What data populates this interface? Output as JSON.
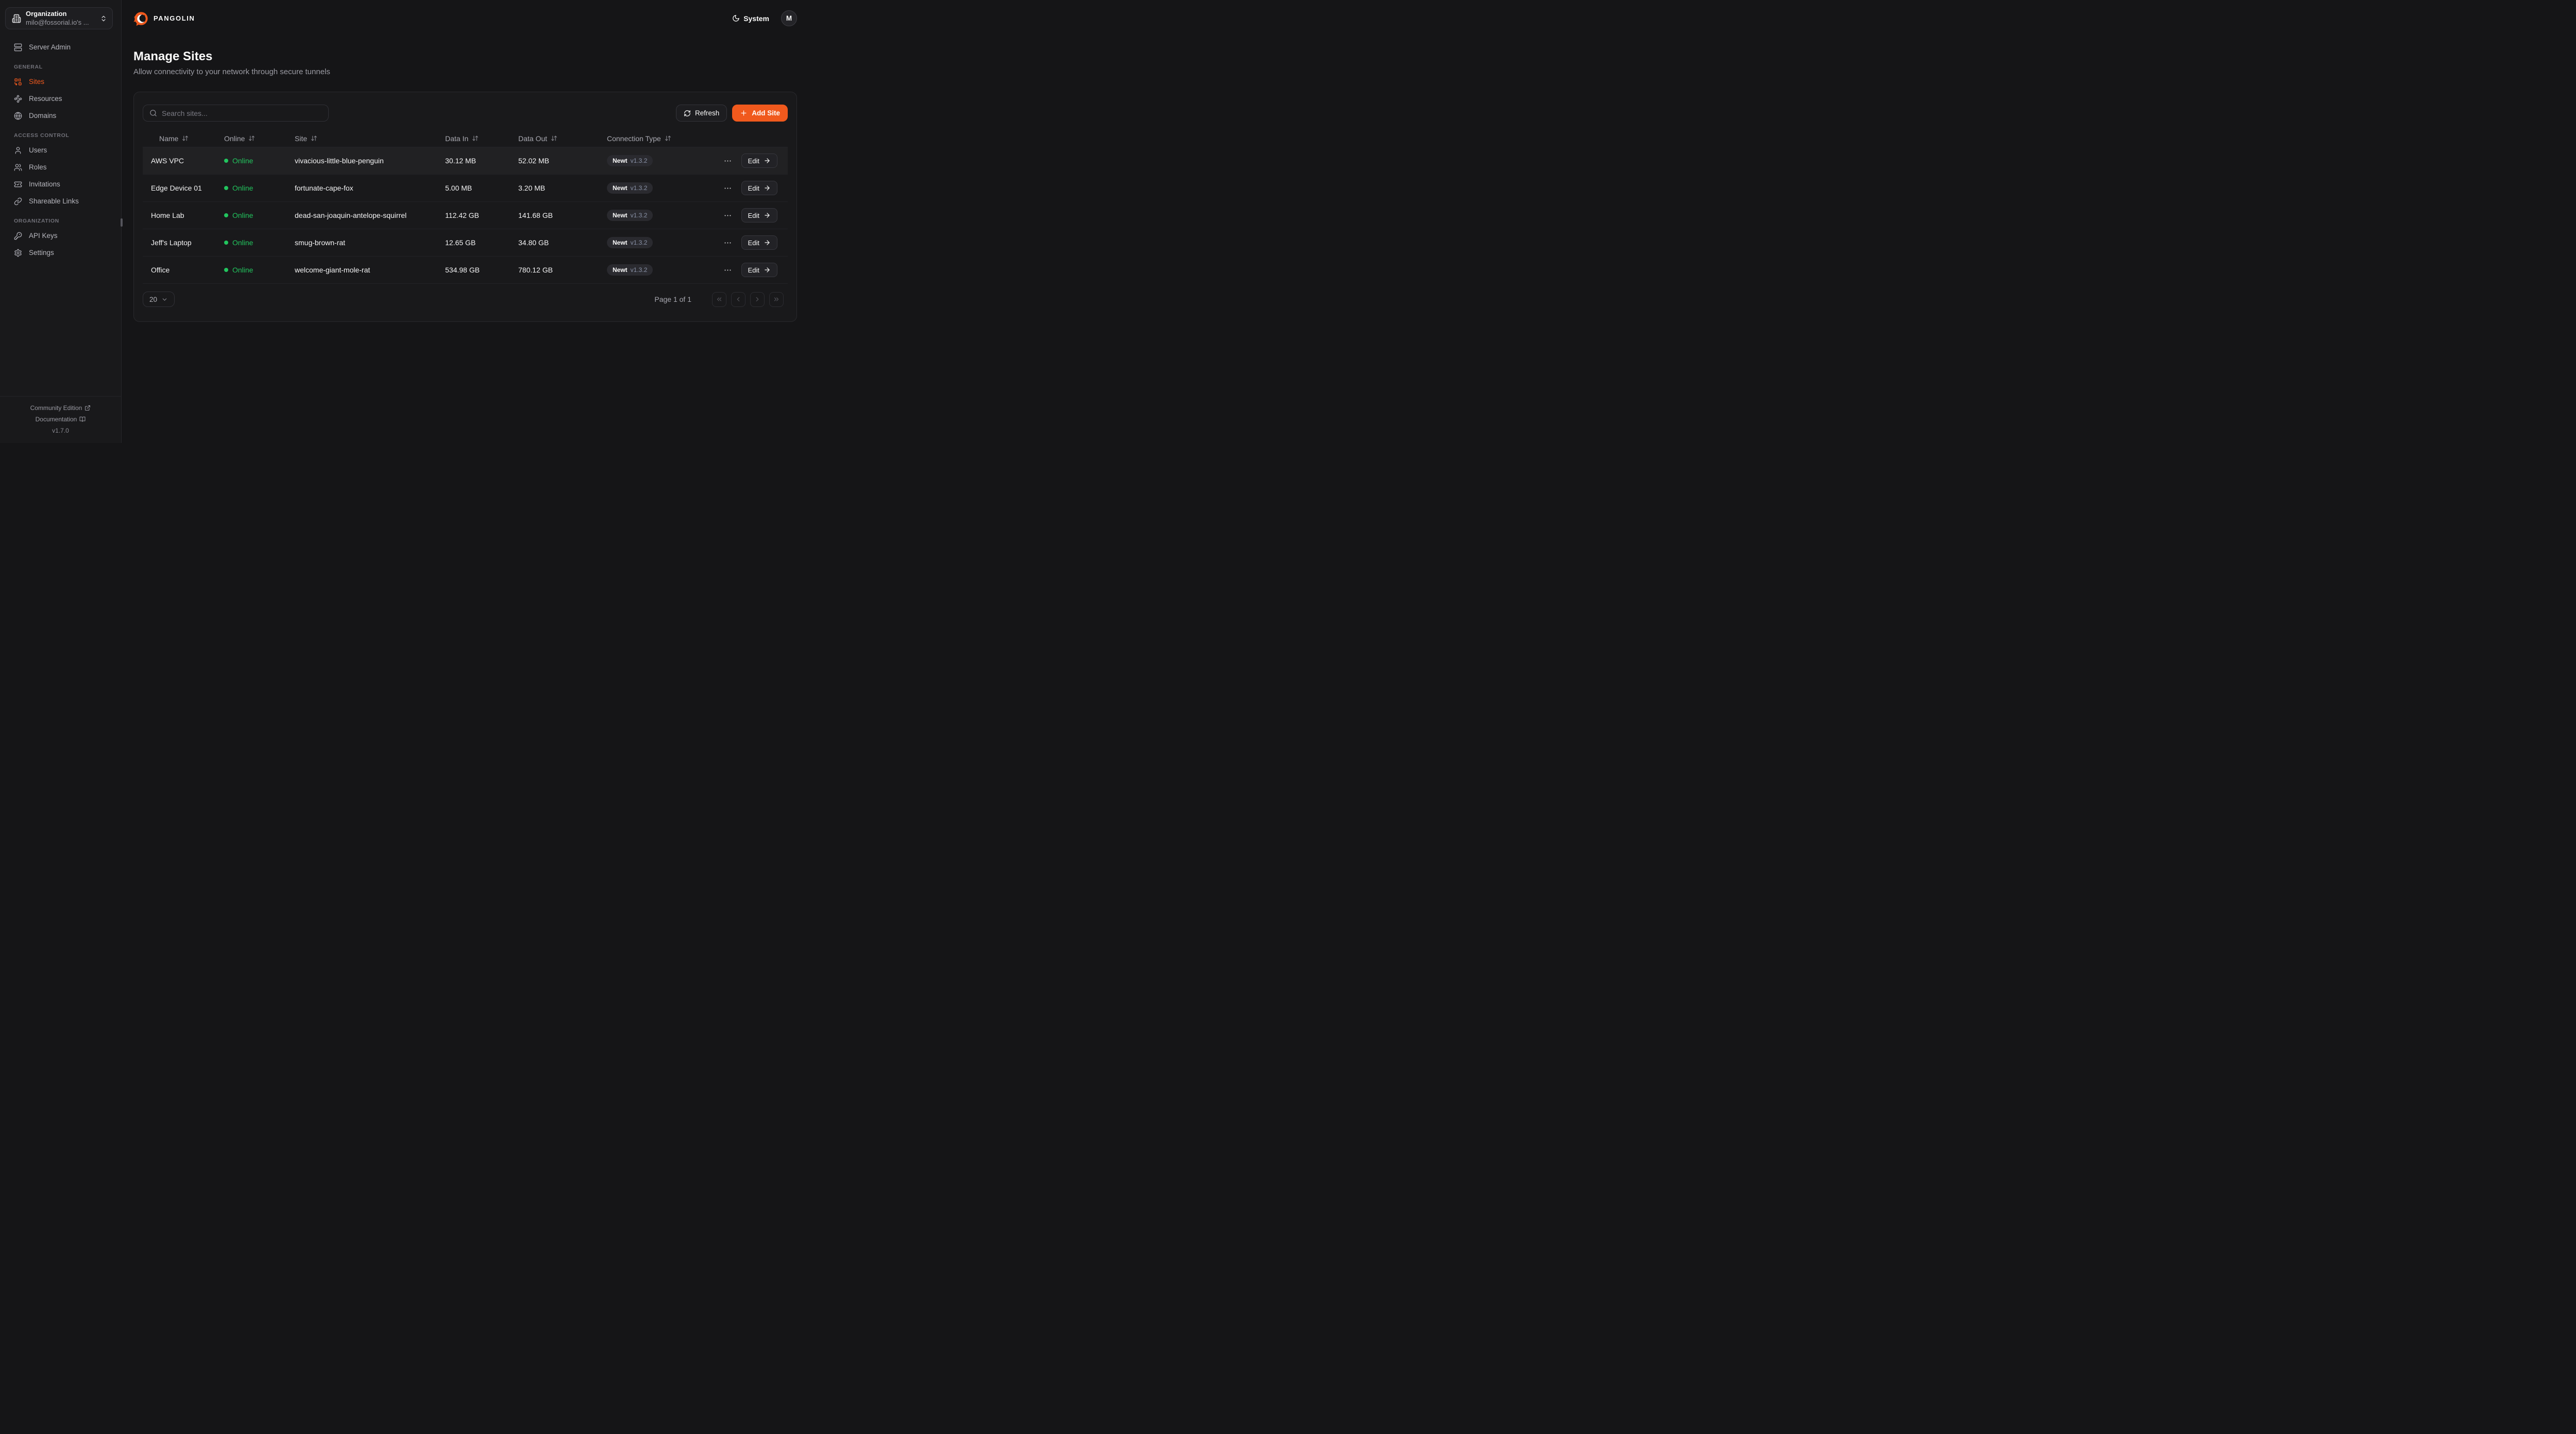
{
  "brand": {
    "name": "PANGOLIN"
  },
  "org_switcher": {
    "label": "Organization",
    "value": "milo@fossorial.io's ...",
    "icon": "building-icon"
  },
  "sidebar": {
    "primary_item": {
      "label": "Server Admin",
      "icon": "server-icon"
    },
    "sections": [
      {
        "label": "GENERAL",
        "items": [
          {
            "label": "Sites",
            "icon": "sites-icon",
            "active": true
          },
          {
            "label": "Resources",
            "icon": "waypoints-icon",
            "active": false
          },
          {
            "label": "Domains",
            "icon": "globe-icon",
            "active": false
          }
        ]
      },
      {
        "label": "ACCESS CONTROL",
        "items": [
          {
            "label": "Users",
            "icon": "user-icon",
            "active": false
          },
          {
            "label": "Roles",
            "icon": "users-icon",
            "active": false
          },
          {
            "label": "Invitations",
            "icon": "ticket-check-icon",
            "active": false
          },
          {
            "label": "Shareable Links",
            "icon": "link-icon",
            "active": false
          }
        ]
      },
      {
        "label": "ORGANIZATION",
        "items": [
          {
            "label": "API Keys",
            "icon": "key-icon",
            "active": false
          },
          {
            "label": "Settings",
            "icon": "gear-icon",
            "active": false
          }
        ]
      }
    ],
    "footer": {
      "links": [
        {
          "label": "Community Edition",
          "icon": "external-link-icon"
        },
        {
          "label": "Documentation",
          "icon": "book-open-icon"
        }
      ],
      "version": "v1.7.0"
    }
  },
  "header": {
    "theme_label": "System",
    "theme_icon": "moon-icon",
    "avatar_initial": "M"
  },
  "page": {
    "title": "Manage Sites",
    "subtitle": "Allow connectivity to your network through secure tunnels"
  },
  "toolbar": {
    "search_placeholder": "Search sites...",
    "refresh_label": "Refresh",
    "add_site_label": "Add Site"
  },
  "table": {
    "columns": [
      "Name",
      "Online",
      "Site",
      "Data In",
      "Data Out",
      "Connection Type"
    ],
    "edit_label": "Edit",
    "rows": [
      {
        "name": "AWS VPC",
        "status": "Online",
        "site": "vivacious-little-blue-penguin",
        "data_in": "30.12 MB",
        "data_out": "52.02 MB",
        "connection": {
          "type": "Newt",
          "version": "v1.3.2"
        },
        "highlighted": true
      },
      {
        "name": "Edge Device 01",
        "status": "Online",
        "site": "fortunate-cape-fox",
        "data_in": "5.00 MB",
        "data_out": "3.20 MB",
        "connection": {
          "type": "Newt",
          "version": "v1.3.2"
        },
        "highlighted": false
      },
      {
        "name": "Home Lab",
        "status": "Online",
        "site": "dead-san-joaquin-antelope-squirrel",
        "data_in": "112.42 GB",
        "data_out": "141.68 GB",
        "connection": {
          "type": "Newt",
          "version": "v1.3.2"
        },
        "highlighted": false
      },
      {
        "name": "Jeff's Laptop",
        "status": "Online",
        "site": "smug-brown-rat",
        "data_in": "12.65 GB",
        "data_out": "34.80 GB",
        "connection": {
          "type": "Newt",
          "version": "v1.3.2"
        },
        "highlighted": false
      },
      {
        "name": "Office",
        "status": "Online",
        "site": "welcome-giant-mole-rat",
        "data_in": "534.98 GB",
        "data_out": "780.12 GB",
        "connection": {
          "type": "Newt",
          "version": "v1.3.2"
        },
        "highlighted": false
      }
    ]
  },
  "pagination": {
    "page_size": "20",
    "status": "Page 1 of 1"
  },
  "colors": {
    "accent_orange": "#F0591D",
    "online_green": "#22C55E",
    "sidebar_bg": "#19191B",
    "card_bg": "#19191B",
    "main_bg": "#151517",
    "badge_bg": "#2A2A2F",
    "badge_version_text": "#8A93A8",
    "border": "#303036"
  }
}
